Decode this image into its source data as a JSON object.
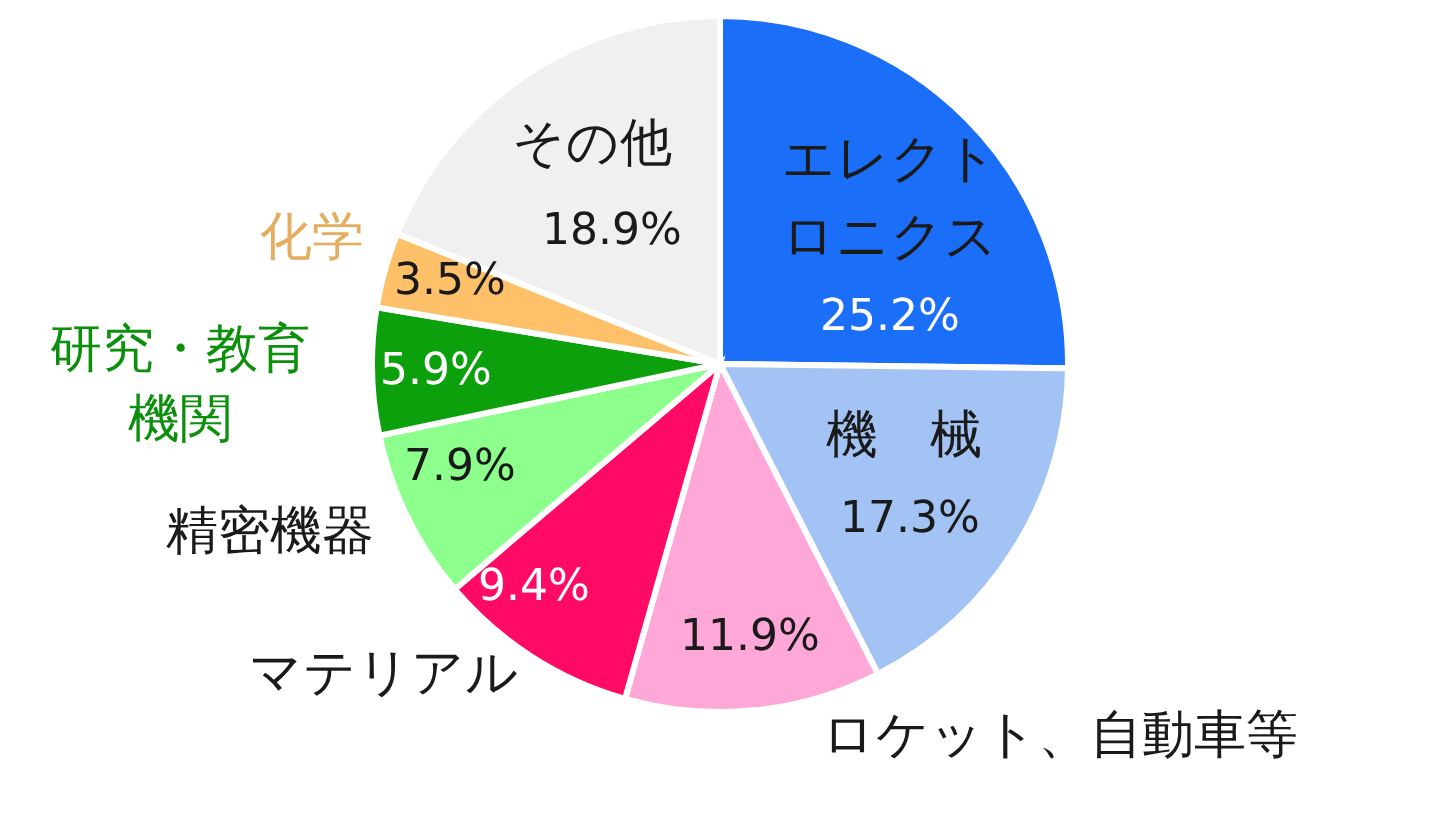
{
  "chart_data": {
    "type": "pie",
    "categories": [
      "エレクトロニクス",
      "機　械",
      "ロケット、自動車等",
      "マテリアル",
      "精密機器",
      "研究・教育機関",
      "化学",
      "その他"
    ],
    "values": [
      25.2,
      17.3,
      11.9,
      9.4,
      7.9,
      5.9,
      3.5,
      18.9
    ],
    "value_labels": [
      "25.2%",
      "17.3%",
      "11.9%",
      "9.4%",
      "7.9%",
      "5.9%",
      "3.5%",
      "18.9%"
    ],
    "colors": [
      "#1a6ef7",
      "#a3c3f5",
      "#ffa8d8",
      "#ff0a64",
      "#8cff8c",
      "#0da00d",
      "#ffc06a",
      "#f0f0f0"
    ]
  }
}
